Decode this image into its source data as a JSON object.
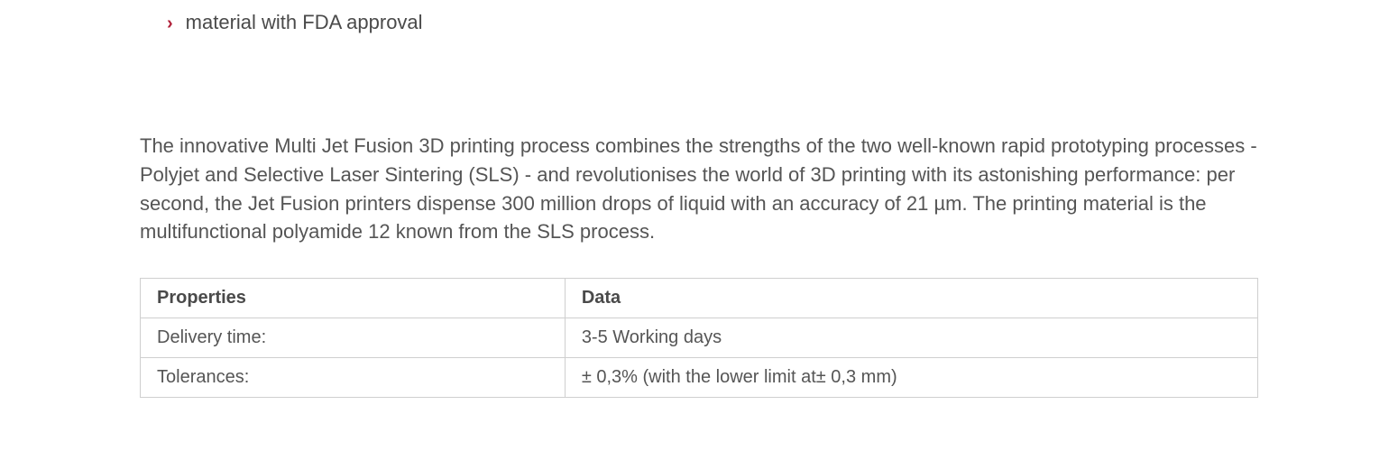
{
  "bullets": {
    "items": [
      {
        "marker": "›",
        "text": "material with FDA approval"
      }
    ],
    "marker_color": "#b0213a"
  },
  "paragraph": {
    "text": "The innovative Multi Jet Fusion 3D printing process combines the strengths of the two well-known rapid prototyping processes - Polyjet and Selective Laser Sintering (SLS) - and revolutionises the world of 3D printing with its astonishing performance: per second, the Jet Fusion printers dispense 300 million drops of liquid with an accuracy of 21 µm. The printing material is the multifunctional polyamide 12 known from the SLS process."
  },
  "table": {
    "type": "table",
    "columns": [
      "Properties",
      "Data"
    ],
    "column_widths": [
      "38%",
      "62%"
    ],
    "rows": [
      [
        "Delivery time:",
        "3-5 Working days"
      ],
      [
        "Tolerances:",
        "± 0,3% (with the lower limit at± 0,3 mm)"
      ]
    ],
    "border_color": "#cfcfcf",
    "text_color": "#555555",
    "header_text_color": "#4a4a4a",
    "background_color": "#ffffff",
    "font_size_pt": 15
  },
  "styling": {
    "body_text_color": "#4a4a4a",
    "paragraph_text_color": "#555555",
    "body_font_size_pt": 17,
    "background_color": "#ffffff"
  }
}
